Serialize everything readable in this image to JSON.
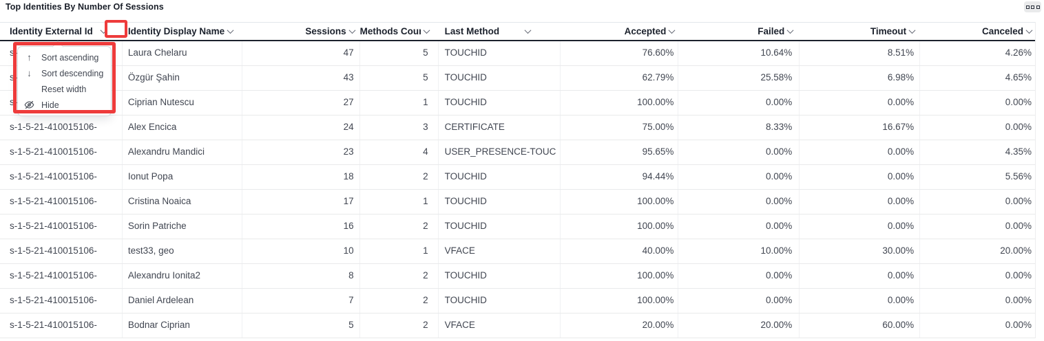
{
  "panel": {
    "title": "Top Identities By Number Of Sessions",
    "menu_button_icon": "panel-menu-icon"
  },
  "colors": {
    "annotation_red": "#ee3b3b",
    "header_border": "#1b212c",
    "row_border": "#e9eaeb",
    "header_text": "#1b212c",
    "cell_text": "#414651"
  },
  "table": {
    "columns": [
      "Identity External Id",
      "Identity Display Name",
      "Sessions",
      "Methods Count",
      "Last Method",
      "Accepted",
      "Failed",
      "Timeout",
      "Canceled"
    ],
    "sort_icon": "chevron-down-icon",
    "rows": [
      [
        "s-1-5-21-410015106-",
        "Laura Chelaru",
        "47",
        "5",
        "TOUCHID",
        "76.60%",
        "10.64%",
        "8.51%",
        "4.26%"
      ],
      [
        "s-1-5-21-410015106-",
        "Özgür Şahin",
        "43",
        "5",
        "TOUCHID",
        "62.79%",
        "25.58%",
        "6.98%",
        "4.65%"
      ],
      [
        "s-1-5-21-410015106-",
        "Ciprian Nutescu",
        "27",
        "1",
        "TOUCHID",
        "100.00%",
        "0.00%",
        "0.00%",
        "0.00%"
      ],
      [
        "s-1-5-21-410015106-",
        "Alex Encica",
        "24",
        "3",
        "CERTIFICATE",
        "75.00%",
        "8.33%",
        "16.67%",
        "0.00%"
      ],
      [
        "s-1-5-21-410015106-",
        "Alexandru Mandici",
        "23",
        "4",
        "USER_PRESENCE-TOUC",
        "95.65%",
        "0.00%",
        "0.00%",
        "4.35%"
      ],
      [
        "s-1-5-21-410015106-",
        "Ionut Popa",
        "18",
        "2",
        "TOUCHID",
        "94.44%",
        "0.00%",
        "0.00%",
        "5.56%"
      ],
      [
        "s-1-5-21-410015106-",
        "Cristina Noaica",
        "17",
        "1",
        "TOUCHID",
        "100.00%",
        "0.00%",
        "0.00%",
        "0.00%"
      ],
      [
        "s-1-5-21-410015106-",
        "Sorin Patriche",
        "16",
        "2",
        "TOUCHID",
        "100.00%",
        "0.00%",
        "0.00%",
        "0.00%"
      ],
      [
        "s-1-5-21-410015106-",
        "test33, geo",
        "10",
        "1",
        "VFACE",
        "40.00%",
        "10.00%",
        "30.00%",
        "20.00%"
      ],
      [
        "s-1-5-21-410015106-",
        "Alexandru Ionita2",
        "8",
        "2",
        "TOUCHID",
        "100.00%",
        "0.00%",
        "0.00%",
        "0.00%"
      ],
      [
        "s-1-5-21-410015106-",
        "Daniel Ardelean",
        "7",
        "2",
        "TOUCHID",
        "100.00%",
        "0.00%",
        "0.00%",
        "0.00%"
      ],
      [
        "s-1-5-21-410015106-",
        "Bodnar Ciprian",
        "5",
        "2",
        "VFACE",
        "20.00%",
        "20.00%",
        "60.00%",
        "0.00%"
      ]
    ]
  },
  "column_menu": {
    "items": [
      {
        "icon": "arrow-up-icon",
        "glyph": "↑",
        "label": "Sort ascending"
      },
      {
        "icon": "arrow-down-icon",
        "glyph": "↓",
        "label": "Sort descending"
      },
      {
        "icon": "",
        "glyph": "",
        "label": "Reset width"
      },
      {
        "icon": "eye-off-icon",
        "glyph": "eye-off",
        "label": "Hide"
      }
    ]
  }
}
